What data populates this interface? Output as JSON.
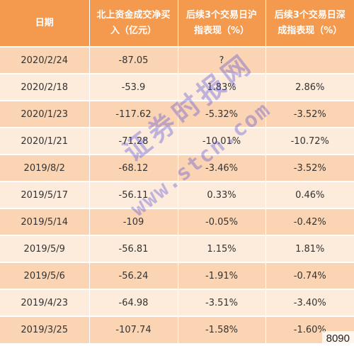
{
  "headers": [
    "日期",
    "北上资金成交净买入（亿元）",
    "后续3个交易日沪指表现（%）",
    "后续3个交易日深成指表现（%）"
  ],
  "rows": [
    [
      "2020/2/24",
      "-87.05",
      "?",
      ""
    ],
    [
      "2020/2/18",
      "-53.9",
      "1.83%",
      "2.86%"
    ],
    [
      "2020/1/23",
      "-117.62",
      "-5.32%",
      "-3.52%"
    ],
    [
      "2020/1/21",
      "-71.28",
      "-10.01%",
      "-10.72%"
    ],
    [
      "2019/8/2",
      "-68.12",
      "-3.46%",
      "-3.52%"
    ],
    [
      "2019/5/17",
      "-56.11",
      "0.33%",
      "0.46%"
    ],
    [
      "2019/5/14",
      "-109",
      "-0.05%",
      "-0.42%"
    ],
    [
      "2019/5/9",
      "-56.81",
      "1.15%",
      "1.81%"
    ],
    [
      "2019/5/6",
      "-56.24",
      "-1.91%",
      "-0.74%"
    ],
    [
      "2019/4/23",
      "-64.98",
      "-3.51%",
      "-3.40%"
    ],
    [
      "2019/3/25",
      "-107.74",
      "-1.58%",
      "-1.60%"
    ]
  ],
  "watermark": {
    "line1": "证券时报网",
    "line2": "www.stcn.com"
  },
  "corner_mark": "8090",
  "colors": {
    "header": "#f49a4e",
    "row_dark": "#fbd5b3",
    "row_light": "#fdebdb"
  }
}
